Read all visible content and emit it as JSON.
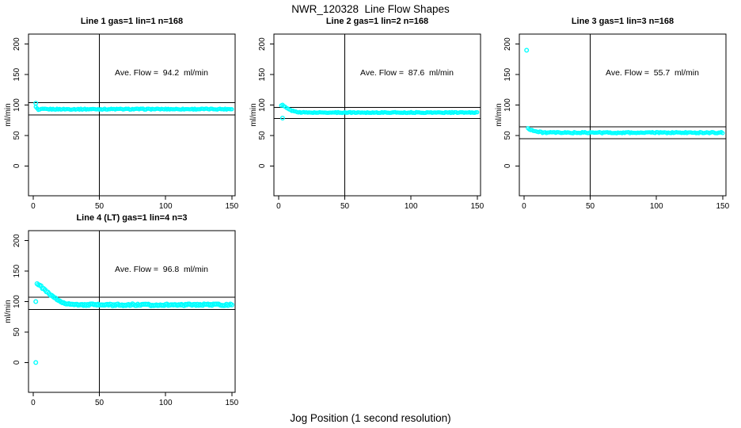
{
  "figure": {
    "title": "NWR_120328  Line Flow Shapes",
    "xlabel": "Jog Position (1 second resolution)",
    "background": "#ffffff",
    "axis_color": "#000000",
    "point_color": "#00ffff"
  },
  "chart_data": [
    {
      "type": "scatter",
      "title": "Line 1 gas=1 lin=1 n=168",
      "annotation": "Ave. Flow =  94.2  ml/min",
      "ave_flow_ml_min": 94.2,
      "n": 168,
      "ylabel": "ml/min",
      "xlim": [
        -3.5,
        152.5
      ],
      "ylim": [
        -49,
        216.5
      ],
      "x_ticks": [
        0,
        50,
        100,
        150
      ],
      "y_ticks": [
        0,
        50,
        100,
        150,
        200
      ],
      "vline": 50,
      "hlines": [
        103.6,
        83.5
      ],
      "point_color": "#00ffff",
      "outliers": [
        [
          2,
          103
        ]
      ],
      "band": {
        "x_start": 2,
        "x_end": 150,
        "step": 1,
        "noise": 0.8,
        "r": 2,
        "profile": [
          [
            2,
            96.5
          ],
          [
            3,
            94.2
          ],
          [
            4,
            91.6
          ],
          [
            5,
            92.6
          ],
          [
            7,
            93.2
          ],
          [
            150,
            93.4
          ]
        ]
      }
    },
    {
      "type": "scatter",
      "title": "Line 2 gas=1 lin=2 n=168",
      "annotation": "Ave. Flow =  87.6  ml/min",
      "ave_flow_ml_min": 87.6,
      "n": 168,
      "ylabel": "ml/min",
      "xlim": [
        -3.5,
        152.5
      ],
      "ylim": [
        -49,
        216.5
      ],
      "x_ticks": [
        0,
        50,
        100,
        150
      ],
      "y_ticks": [
        0,
        50,
        100,
        150,
        200
      ],
      "vline": 50,
      "hlines": [
        96.4,
        78
      ],
      "point_color": "#00ffff",
      "outliers": [
        [
          3,
          78.5
        ]
      ],
      "band": {
        "x_start": 2,
        "x_end": 150,
        "step": 1,
        "noise": 0.7,
        "r": 2,
        "profile": [
          [
            2,
            99
          ],
          [
            3,
            100.2
          ],
          [
            4,
            98.3
          ],
          [
            5,
            96.6
          ],
          [
            6,
            95.1
          ],
          [
            7,
            93.8
          ],
          [
            8,
            92.7
          ],
          [
            9,
            91.7
          ],
          [
            10,
            90.9
          ],
          [
            11,
            90.2
          ],
          [
            12,
            89.6
          ],
          [
            13,
            89.1
          ],
          [
            14,
            88.7
          ],
          [
            16,
            88.2
          ],
          [
            18,
            87.9
          ],
          [
            22,
            87.7
          ],
          [
            150,
            87.7
          ]
        ]
      }
    },
    {
      "type": "scatter",
      "title": "Line 3 gas=1 lin=3 n=168",
      "annotation": "Ave. Flow =  55.7  ml/min",
      "ave_flow_ml_min": 55.7,
      "n": 168,
      "ylabel": "ml/min",
      "xlim": [
        -3.5,
        152.5
      ],
      "ylim": [
        -49,
        216.5
      ],
      "x_ticks": [
        0,
        50,
        100,
        150
      ],
      "y_ticks": [
        0,
        50,
        100,
        150,
        200
      ],
      "vline": 50,
      "hlines": [
        64.5,
        44.5
      ],
      "point_color": "#00ffff",
      "outliers": [
        [
          2,
          190
        ]
      ],
      "band": {
        "x_start": 3,
        "x_end": 150,
        "step": 1,
        "noise": 1.0,
        "r": 2,
        "profile": [
          [
            3,
            62
          ],
          [
            4,
            60.8
          ],
          [
            5,
            59.7
          ],
          [
            6,
            58.8
          ],
          [
            7,
            58
          ],
          [
            8,
            57.3
          ],
          [
            9,
            56.7
          ],
          [
            10,
            56.2
          ],
          [
            12,
            55.5
          ],
          [
            14,
            55.1
          ],
          [
            17,
            54.8
          ],
          [
            22,
            54.6
          ],
          [
            150,
            54.7
          ]
        ]
      }
    },
    {
      "type": "scatter",
      "title": "Line 4 (LT) gas=1 lin=4 n=3",
      "annotation": "Ave. Flow =  96.8  ml/min",
      "ave_flow_ml_min": 96.8,
      "n": 3,
      "ylabel": "ml/min",
      "xlim": [
        -3.5,
        152.5
      ],
      "ylim": [
        -49,
        216.5
      ],
      "x_ticks": [
        0,
        50,
        100,
        150
      ],
      "y_ticks": [
        0,
        50,
        100,
        150,
        200
      ],
      "vline": 50,
      "hlines": [
        107,
        87.1
      ],
      "point_color": "#00ffff",
      "outliers": [
        [
          2,
          100
        ],
        [
          2,
          0
        ]
      ],
      "band": {
        "x_start": 3,
        "x_end": 150,
        "step": 1,
        "noise": 1.2,
        "r": 2.5,
        "profile": [
          [
            3,
            129.5
          ],
          [
            4,
            128
          ],
          [
            5,
            126.4
          ],
          [
            6,
            124.6
          ],
          [
            7,
            122.6
          ],
          [
            8,
            120.6
          ],
          [
            9,
            118.6
          ],
          [
            10,
            116.6
          ],
          [
            11,
            114.7
          ],
          [
            12,
            112.8
          ],
          [
            13,
            111
          ],
          [
            14,
            109.3
          ],
          [
            15,
            107.7
          ],
          [
            16,
            106.2
          ],
          [
            17,
            104.8
          ],
          [
            18,
            103.5
          ],
          [
            19,
            102.3
          ],
          [
            20,
            101.2
          ],
          [
            21,
            100.2
          ],
          [
            22,
            99.3
          ],
          [
            23,
            98.5
          ],
          [
            24,
            97.8
          ],
          [
            25,
            97.2
          ],
          [
            26,
            96.7
          ],
          [
            27,
            96.2
          ],
          [
            28,
            95.8
          ],
          [
            30,
            95.2
          ],
          [
            32,
            94.8
          ],
          [
            35,
            94.9
          ],
          [
            40,
            94.6
          ],
          [
            45,
            95.2
          ],
          [
            50,
            94.5
          ],
          [
            55,
            95.1
          ],
          [
            60,
            94.3
          ],
          [
            65,
            95.0
          ],
          [
            70,
            94.2
          ],
          [
            75,
            95.0
          ],
          [
            80,
            94.4
          ],
          [
            85,
            94.9
          ],
          [
            90,
            94.1
          ],
          [
            95,
            94.7
          ],
          [
            100,
            95.0
          ],
          [
            105,
            94.3
          ],
          [
            110,
            95.2
          ],
          [
            115,
            94.5
          ],
          [
            120,
            95.3
          ],
          [
            125,
            94.6
          ],
          [
            130,
            95.5
          ],
          [
            135,
            94.8
          ],
          [
            140,
            95.1
          ],
          [
            145,
            94.5
          ],
          [
            150,
            94.8
          ]
        ]
      }
    }
  ]
}
